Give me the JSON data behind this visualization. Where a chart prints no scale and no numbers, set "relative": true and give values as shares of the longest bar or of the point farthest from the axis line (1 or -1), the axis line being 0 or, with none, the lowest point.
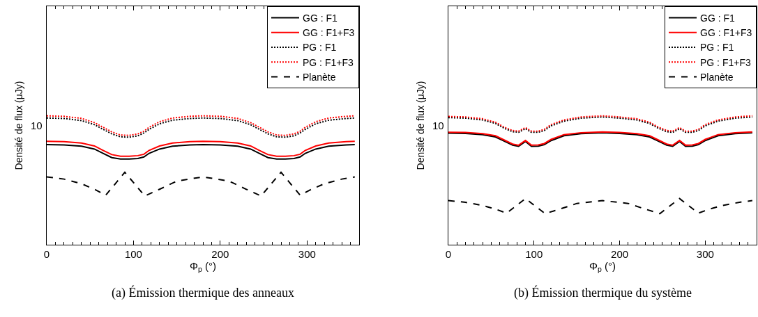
{
  "chart_data": [
    {
      "type": "line",
      "relative": true,
      "xlabel": "Φ$_{p}$ (°)",
      "ylabel": "Densité de flux (μJy)",
      "grid": false,
      "legend": "top right",
      "xlim": [
        0,
        360
      ],
      "xticks": [
        0,
        100,
        200,
        300
      ],
      "annotations": [
        "(a) Émission thermique des anneaux",
        "10"
      ],
      "series": [
        {
          "name": "GG : F1",
          "color": "#000000",
          "line_style": "solid",
          "x": [
            0,
            20,
            40,
            55,
            65,
            75,
            85,
            95,
            105,
            112,
            118,
            130,
            145,
            165,
            180,
            200,
            220,
            235,
            245,
            255,
            265,
            275,
            285,
            292,
            298,
            310,
            325,
            345,
            355
          ],
          "values": [
            0.777,
            0.774,
            0.764,
            0.742,
            0.709,
            0.676,
            0.665,
            0.665,
            0.669,
            0.681,
            0.709,
            0.742,
            0.764,
            0.774,
            0.777,
            0.774,
            0.764,
            0.742,
            0.709,
            0.676,
            0.665,
            0.665,
            0.669,
            0.681,
            0.709,
            0.742,
            0.764,
            0.774,
            0.777
          ]
        },
        {
          "name": "GG : F1+F3",
          "color": "#ff0000",
          "line_style": "solid",
          "x": [
            0,
            20,
            40,
            55,
            65,
            75,
            85,
            95,
            105,
            112,
            118,
            130,
            145,
            165,
            180,
            200,
            220,
            235,
            245,
            255,
            265,
            275,
            285,
            292,
            298,
            310,
            325,
            345,
            355
          ],
          "values": [
            0.802,
            0.799,
            0.789,
            0.766,
            0.732,
            0.699,
            0.686,
            0.686,
            0.691,
            0.702,
            0.732,
            0.766,
            0.789,
            0.799,
            0.802,
            0.799,
            0.789,
            0.766,
            0.732,
            0.699,
            0.686,
            0.686,
            0.691,
            0.702,
            0.732,
            0.766,
            0.789,
            0.799,
            0.802
          ]
        },
        {
          "name": "PG : F1",
          "color": "#000000",
          "line_style": "dotted",
          "x": [
            0,
            20,
            40,
            55,
            65,
            75,
            85,
            95,
            105,
            112,
            118,
            130,
            145,
            165,
            180,
            200,
            220,
            235,
            245,
            255,
            265,
            275,
            285,
            292,
            298,
            310,
            325,
            345,
            355
          ],
          "values": [
            0.983,
            0.979,
            0.963,
            0.931,
            0.895,
            0.86,
            0.837,
            0.834,
            0.845,
            0.867,
            0.895,
            0.938,
            0.966,
            0.979,
            0.983,
            0.979,
            0.963,
            0.931,
            0.895,
            0.86,
            0.837,
            0.834,
            0.845,
            0.867,
            0.895,
            0.938,
            0.966,
            0.979,
            0.983
          ]
        },
        {
          "name": "PG : F1+F3",
          "color": "#ff0000",
          "line_style": "dotted",
          "x": [
            0,
            20,
            40,
            55,
            65,
            75,
            85,
            95,
            105,
            112,
            118,
            130,
            145,
            165,
            180,
            200,
            220,
            235,
            245,
            255,
            265,
            275,
            285,
            292,
            298,
            310,
            325,
            345,
            355
          ],
          "values": [
            1,
            0.996,
            0.98,
            0.947,
            0.911,
            0.875,
            0.851,
            0.848,
            0.86,
            0.881,
            0.911,
            0.954,
            0.983,
            0.996,
            1,
            0.996,
            0.98,
            0.947,
            0.911,
            0.875,
            0.851,
            0.848,
            0.86,
            0.881,
            0.911,
            0.954,
            0.983,
            0.996,
            1
          ]
        },
        {
          "name": "Planète",
          "color": "#000000",
          "line_style": "dashed",
          "x": [
            0,
            20,
            40,
            55,
            68,
            90,
            113,
            130,
            150,
            180,
            210,
            230,
            247,
            270,
            292,
            305,
            320,
            340,
            355
          ],
          "values": [
            0.526,
            0.509,
            0.473,
            0.43,
            0.384,
            0.562,
            0.378,
            0.43,
            0.494,
            0.526,
            0.494,
            0.43,
            0.378,
            0.562,
            0.384,
            0.43,
            0.473,
            0.509,
            0.526
          ]
        }
      ]
    },
    {
      "type": "line",
      "relative": true,
      "xlabel": "Φ$_{p}$ (°)",
      "ylabel": "Densité de flux (μJy)",
      "grid": false,
      "legend": "top right",
      "xlim": [
        0,
        360
      ],
      "xticks": [
        0,
        100,
        200,
        300
      ],
      "annotations": [
        "(b) Émission thermique du système",
        "10"
      ],
      "series": [
        {
          "name": "GG : F1",
          "color": "#000000",
          "line_style": "solid",
          "x": [
            0,
            20,
            40,
            55,
            65,
            75,
            82,
            90,
            97,
            105,
            112,
            120,
            135,
            155,
            180,
            200,
            220,
            235,
            245,
            255,
            262,
            270,
            277,
            285,
            292,
            300,
            315,
            335,
            355
          ],
          "values": [
            0.865,
            0.863,
            0.854,
            0.836,
            0.804,
            0.772,
            0.763,
            0.801,
            0.763,
            0.765,
            0.776,
            0.808,
            0.845,
            0.861,
            0.868,
            0.863,
            0.854,
            0.836,
            0.804,
            0.772,
            0.763,
            0.801,
            0.763,
            0.765,
            0.776,
            0.808,
            0.845,
            0.861,
            0.868
          ]
        },
        {
          "name": "GG : F1+F3",
          "color": "#ff0000",
          "line_style": "solid",
          "x": [
            0,
            20,
            40,
            55,
            65,
            75,
            82,
            90,
            97,
            105,
            112,
            120,
            135,
            155,
            180,
            200,
            220,
            235,
            245,
            255,
            262,
            270,
            277,
            285,
            292,
            300,
            315,
            335,
            355
          ],
          "values": [
            0.873,
            0.871,
            0.862,
            0.845,
            0.813,
            0.781,
            0.772,
            0.809,
            0.772,
            0.774,
            0.785,
            0.817,
            0.854,
            0.869,
            0.875,
            0.871,
            0.862,
            0.845,
            0.813,
            0.781,
            0.772,
            0.809,
            0.772,
            0.774,
            0.785,
            0.817,
            0.854,
            0.869,
            0.875
          ]
        },
        {
          "name": "PG : F1",
          "color": "#000000",
          "line_style": "dotted",
          "x": [
            0,
            20,
            40,
            55,
            65,
            75,
            82,
            90,
            97,
            105,
            112,
            120,
            135,
            155,
            180,
            200,
            220,
            235,
            245,
            255,
            262,
            270,
            277,
            285,
            292,
            300,
            315,
            335,
            355
          ],
          "values": [
            0.986,
            0.982,
            0.968,
            0.941,
            0.904,
            0.877,
            0.872,
            0.9,
            0.872,
            0.872,
            0.886,
            0.922,
            0.959,
            0.982,
            0.991,
            0.982,
            0.968,
            0.941,
            0.904,
            0.877,
            0.872,
            0.9,
            0.872,
            0.872,
            0.886,
            0.922,
            0.959,
            0.982,
            0.991
          ]
        },
        {
          "name": "PG : F1+F3",
          "color": "#ff0000",
          "line_style": "dotted",
          "x": [
            0,
            20,
            40,
            55,
            65,
            75,
            82,
            90,
            97,
            105,
            112,
            120,
            135,
            155,
            180,
            200,
            220,
            235,
            245,
            255,
            262,
            270,
            277,
            285,
            292,
            300,
            315,
            335,
            355
          ],
          "values": [
            0.995,
            0.991,
            0.977,
            0.95,
            0.913,
            0.886,
            0.881,
            0.909,
            0.881,
            0.881,
            0.895,
            0.932,
            0.968,
            0.991,
            1,
            0.991,
            0.977,
            0.95,
            0.913,
            0.886,
            0.881,
            0.909,
            0.881,
            0.881,
            0.895,
            0.932,
            0.968,
            0.991,
            1
          ]
        },
        {
          "name": "Planète",
          "color": "#000000",
          "line_style": "dashed",
          "x": [
            0,
            20,
            40,
            55,
            68,
            90,
            113,
            130,
            150,
            180,
            210,
            230,
            247,
            270,
            292,
            305,
            320,
            340,
            355
          ],
          "values": [
            0.342,
            0.329,
            0.304,
            0.276,
            0.245,
            0.358,
            0.241,
            0.276,
            0.32,
            0.342,
            0.32,
            0.276,
            0.241,
            0.358,
            0.245,
            0.276,
            0.304,
            0.329,
            0.342
          ]
        }
      ]
    }
  ]
}
